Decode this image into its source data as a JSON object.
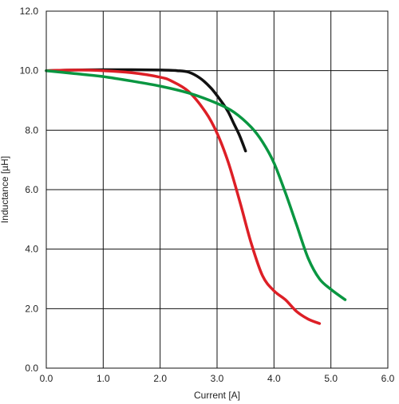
{
  "chart_data": {
    "type": "line",
    "xlabel": "Current [A]",
    "ylabel": "Inductance [µH]",
    "xlim": [
      0,
      6
    ],
    "ylim": [
      0,
      12
    ],
    "x_ticks": [
      "0.0",
      "1.0",
      "2.0",
      "3.0",
      "4.0",
      "5.0",
      "6.0"
    ],
    "y_ticks": [
      "0.0",
      "2.0",
      "4.0",
      "6.0",
      "8.0",
      "10.0",
      "12.0"
    ],
    "grid": true,
    "series": [
      {
        "color": "#111111",
        "points": [
          [
            0,
            10.0
          ],
          [
            0.5,
            10.02
          ],
          [
            1.0,
            10.03
          ],
          [
            1.5,
            10.03
          ],
          [
            2.0,
            10.02
          ],
          [
            2.3,
            10.0
          ],
          [
            2.5,
            9.95
          ],
          [
            2.7,
            9.75
          ],
          [
            2.9,
            9.4
          ],
          [
            3.1,
            8.9
          ],
          [
            3.2,
            8.6
          ],
          [
            3.3,
            8.2
          ],
          [
            3.4,
            7.8
          ],
          [
            3.5,
            7.3
          ]
        ]
      },
      {
        "color": "#dd1f26",
        "points": [
          [
            0,
            10.0
          ],
          [
            0.5,
            10.02
          ],
          [
            1.0,
            10.0
          ],
          [
            1.5,
            9.93
          ],
          [
            2.0,
            9.78
          ],
          [
            2.2,
            9.65
          ],
          [
            2.5,
            9.3
          ],
          [
            2.8,
            8.6
          ],
          [
            3.0,
            7.9
          ],
          [
            3.2,
            6.9
          ],
          [
            3.4,
            5.6
          ],
          [
            3.6,
            4.2
          ],
          [
            3.8,
            3.1
          ],
          [
            4.0,
            2.6
          ],
          [
            4.2,
            2.3
          ],
          [
            4.4,
            1.9
          ],
          [
            4.6,
            1.65
          ],
          [
            4.8,
            1.5
          ]
        ]
      },
      {
        "color": "#0a9641",
        "points": [
          [
            0,
            10.0
          ],
          [
            0.5,
            9.9
          ],
          [
            1.0,
            9.8
          ],
          [
            1.5,
            9.65
          ],
          [
            2.0,
            9.48
          ],
          [
            2.5,
            9.25
          ],
          [
            3.0,
            8.9
          ],
          [
            3.3,
            8.6
          ],
          [
            3.6,
            8.1
          ],
          [
            3.8,
            7.6
          ],
          [
            4.0,
            6.9
          ],
          [
            4.2,
            5.9
          ],
          [
            4.4,
            4.8
          ],
          [
            4.6,
            3.7
          ],
          [
            4.8,
            3.0
          ],
          [
            5.0,
            2.65
          ],
          [
            5.25,
            2.3
          ]
        ]
      }
    ]
  }
}
